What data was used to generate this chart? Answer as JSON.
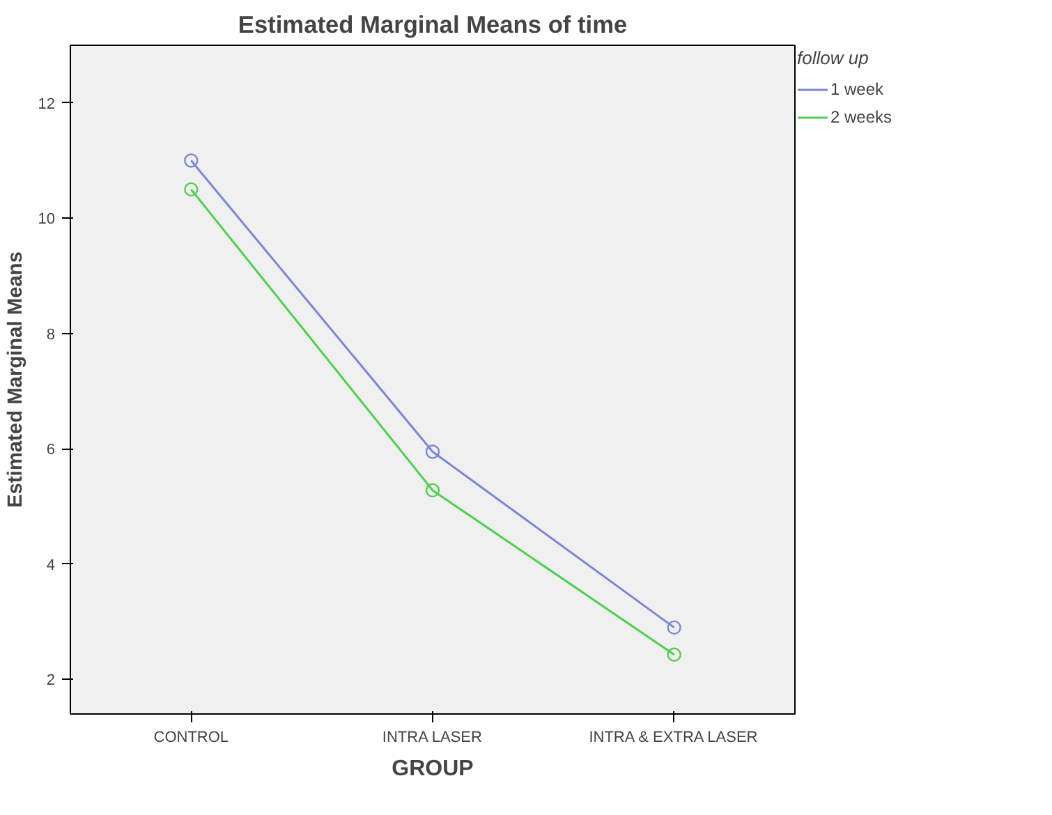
{
  "chart_data": {
    "type": "line",
    "title": "Estimated Marginal Means of time",
    "xlabel": "GROUP",
    "ylabel": "Estimated Marginal Means",
    "legend_title": "follow up",
    "categories": [
      "CONTROL",
      "INTRA LASER",
      "INTRA & EXTRA LASER"
    ],
    "series": [
      {
        "name": "1 week",
        "color": "#7b86d6",
        "values": [
          11.0,
          5.95,
          2.9
        ]
      },
      {
        "name": "2 weeks",
        "color": "#4fcf4f",
        "values": [
          10.5,
          5.28,
          2.43
        ]
      }
    ],
    "ylim": [
      1.4,
      13
    ],
    "yticks": [
      2,
      4,
      6,
      8,
      10,
      12
    ],
    "grid": false,
    "legend": "top right",
    "marker": "circle",
    "line_style": "solid"
  }
}
